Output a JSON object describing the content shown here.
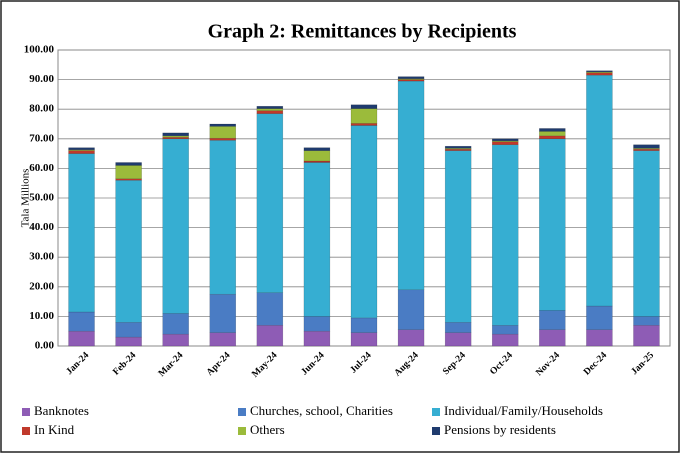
{
  "chart_data": {
    "type": "stacked_bar",
    "title": "Graph 2: Remittances by Recipients",
    "y_label": "Tala Millions",
    "categories": [
      "Jan-24",
      "Feb-24",
      "Mar-24",
      "Apr-24",
      "May-24",
      "Jun-24",
      "Jul-24",
      "Aug-24",
      "Sep-24",
      "Oct-24",
      "Nov-24",
      "Dec-24",
      "Jan-25"
    ],
    "series": [
      {
        "name": "Banknotes",
        "color": "#8e5cb5",
        "values": [
          5.0,
          3.0,
          4.0,
          4.5,
          7.0,
          5.0,
          4.5,
          5.5,
          4.5,
          4.0,
          5.5,
          5.5,
          7.0
        ]
      },
      {
        "name": "Churches, school, Charities",
        "color": "#4a7cc4",
        "values": [
          6.5,
          5.0,
          7.0,
          13.0,
          11.0,
          5.0,
          5.0,
          13.5,
          3.5,
          3.0,
          6.5,
          8.0,
          3.0
        ]
      },
      {
        "name": "Individual/Family/Households",
        "color": "#36aed2",
        "values": [
          53.5,
          48.0,
          59.0,
          52.0,
          60.5,
          52.0,
          65.0,
          70.5,
          58.0,
          61.0,
          58.0,
          78.0,
          56.0
        ]
      },
      {
        "name": "In Kind",
        "color": "#c0392b",
        "values": [
          1.0,
          0.5,
          0.5,
          0.7,
          1.0,
          0.5,
          0.7,
          0.5,
          0.5,
          1.0,
          1.0,
          0.8,
          0.5
        ]
      },
      {
        "name": "Others",
        "color": "#9bbb3b",
        "values": [
          0.3,
          4.5,
          0.5,
          4.0,
          0.7,
          3.5,
          5.0,
          0.3,
          0.3,
          0.3,
          1.5,
          0.3,
          0.3
        ]
      },
      {
        "name": "Pensions by residents",
        "color": "#1f3b6e",
        "values": [
          0.7,
          1.0,
          1.0,
          0.8,
          0.8,
          1.0,
          1.3,
          0.7,
          0.7,
          0.7,
          1.0,
          0.4,
          1.2
        ]
      }
    ],
    "ylim": [
      0,
      100
    ],
    "yticks": [
      {
        "value": 0,
        "label": "0.00"
      },
      {
        "value": 10,
        "label": "10.00"
      },
      {
        "value": 20,
        "label": "20.00"
      },
      {
        "value": 30,
        "label": "30.00"
      },
      {
        "value": 40,
        "label": "40.00"
      },
      {
        "value": 50,
        "label": "50.00"
      },
      {
        "value": 60,
        "label": "60.00"
      },
      {
        "value": 70,
        "label": "70.00"
      },
      {
        "value": 80,
        "label": "80.00"
      },
      {
        "value": 90,
        "label": "90.00"
      },
      {
        "value": 100,
        "label": "100.00"
      }
    ],
    "grid": true
  }
}
